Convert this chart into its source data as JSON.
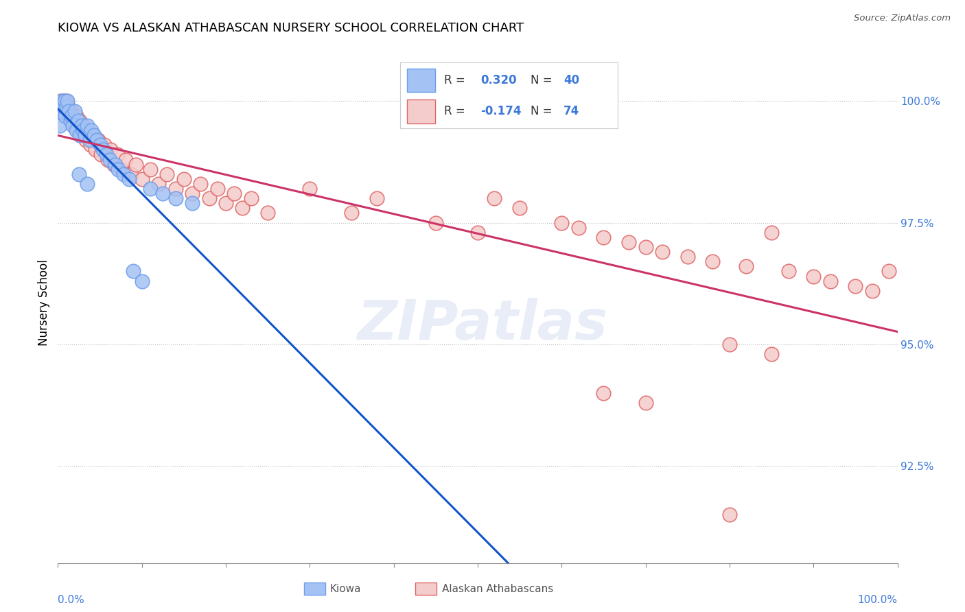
{
  "title": "KIOWA VS ALASKAN ATHABASCAN NURSERY SCHOOL CORRELATION CHART",
  "source": "Source: ZipAtlas.com",
  "ylabel": "Nursery School",
  "ylim": [
    90.5,
    101.2
  ],
  "xlim": [
    0,
    100
  ],
  "yticks": [
    92.5,
    95.0,
    97.5,
    100.0
  ],
  "ytick_labels": [
    "92.5%",
    "95.0%",
    "97.5%",
    "100.0%"
  ],
  "kiowa_color": "#a4c2f4",
  "kiowa_edge_color": "#6d9eeb",
  "athabascan_color": "#f4cccc",
  "athabascan_edge_color": "#e06666",
  "trend_kiowa_color": "#1155cc",
  "trend_athabascan_color": "#cc3366",
  "kiowa_R": 0.32,
  "kiowa_N": 40,
  "athabascan_R": -0.174,
  "athabascan_N": 74,
  "kiowa_x": [
    0.2,
    0.4,
    0.5,
    0.6,
    0.8,
    0.9,
    1.0,
    1.1,
    1.3,
    1.5,
    1.6,
    1.8,
    2.0,
    2.2,
    2.4,
    2.6,
    2.8,
    3.0,
    3.2,
    3.5,
    3.8,
    4.0,
    4.3,
    4.6,
    5.0,
    5.4,
    5.8,
    6.2,
    6.8,
    7.2,
    7.8,
    8.5,
    9.0,
    10.0,
    11.0,
    12.5,
    14.0,
    16.0,
    2.5,
    3.5
  ],
  "kiowa_y": [
    99.5,
    99.8,
    100.0,
    99.9,
    100.0,
    99.7,
    99.9,
    100.0,
    99.8,
    99.6,
    99.7,
    99.5,
    99.8,
    99.4,
    99.6,
    99.3,
    99.5,
    99.4,
    99.3,
    99.5,
    99.2,
    99.4,
    99.3,
    99.2,
    99.1,
    99.0,
    98.9,
    98.8,
    98.7,
    98.6,
    98.5,
    98.4,
    96.5,
    96.3,
    98.2,
    98.1,
    98.0,
    97.9,
    98.5,
    98.3
  ],
  "athabascan_x": [
    0.3,
    0.5,
    0.7,
    0.9,
    1.0,
    1.2,
    1.4,
    1.6,
    1.8,
    2.0,
    2.2,
    2.4,
    2.6,
    2.8,
    3.0,
    3.3,
    3.6,
    3.9,
    4.2,
    4.5,
    4.8,
    5.1,
    5.5,
    5.9,
    6.3,
    6.7,
    7.1,
    7.6,
    8.1,
    8.7,
    9.3,
    10.0,
    11.0,
    12.0,
    13.0,
    14.0,
    15.0,
    16.0,
    17.0,
    18.0,
    19.0,
    20.0,
    21.0,
    22.0,
    23.0,
    25.0,
    30.0,
    35.0,
    38.0,
    45.0,
    50.0,
    52.0,
    55.0,
    60.0,
    62.0,
    65.0,
    68.0,
    70.0,
    72.0,
    75.0,
    78.0,
    80.0,
    82.0,
    85.0,
    87.0,
    90.0,
    92.0,
    95.0,
    97.0,
    99.0,
    65.0,
    70.0,
    80.0,
    85.0
  ],
  "athabascan_y": [
    100.0,
    99.9,
    100.0,
    99.8,
    100.0,
    99.9,
    99.7,
    99.8,
    99.6,
    99.5,
    99.7,
    99.4,
    99.6,
    99.3,
    99.5,
    99.2,
    99.4,
    99.1,
    99.3,
    99.0,
    99.2,
    98.9,
    99.1,
    98.8,
    99.0,
    98.7,
    98.9,
    98.6,
    98.8,
    98.5,
    98.7,
    98.4,
    98.6,
    98.3,
    98.5,
    98.2,
    98.4,
    98.1,
    98.3,
    98.0,
    98.2,
    97.9,
    98.1,
    97.8,
    98.0,
    97.7,
    98.2,
    97.7,
    98.0,
    97.5,
    97.3,
    98.0,
    97.8,
    97.5,
    97.4,
    97.2,
    97.1,
    97.0,
    96.9,
    96.8,
    96.7,
    95.0,
    96.6,
    97.3,
    96.5,
    96.4,
    96.3,
    96.2,
    96.1,
    96.5,
    94.0,
    93.8,
    91.5,
    94.8
  ]
}
